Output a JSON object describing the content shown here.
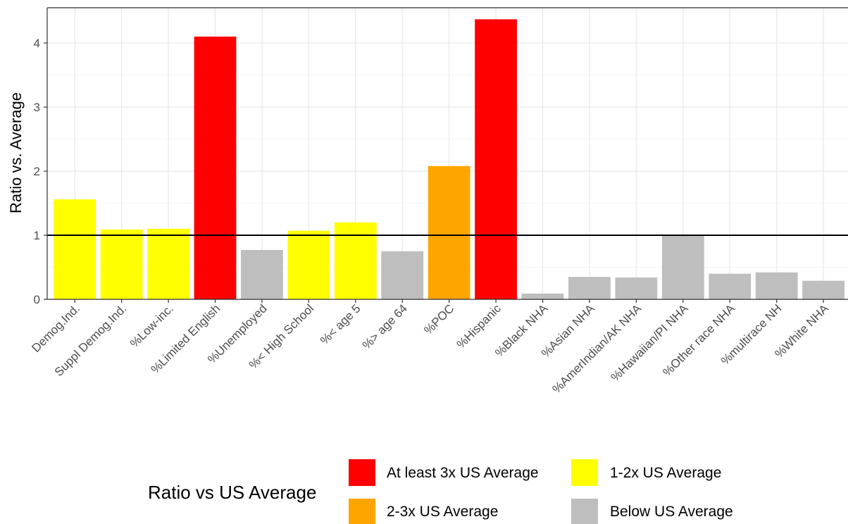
{
  "chart_data": {
    "type": "bar",
    "title": "",
    "xlabel": "",
    "ylabel": "Ratio vs. Average",
    "ylim": [
      0,
      4.55
    ],
    "yticks": [
      0,
      1,
      2,
      3,
      4
    ],
    "reference_line": 1,
    "grid": true,
    "categories": [
      "Demog.Ind.",
      "Suppl Demog.Ind.",
      "%Low-inc.",
      "%Limited English",
      "%Unemployed",
      "%< High School",
      "%< age 5",
      "%> age 64",
      "%POC",
      "%Hispanic",
      "%Black NHA",
      "%Asian NHA",
      "%AmerIndian/AK NHA",
      "%Hawaiian/PI NHA",
      "%Other race NHA",
      "%multirace NH",
      "%White NHA"
    ],
    "values": [
      1.56,
      1.09,
      1.1,
      4.1,
      0.77,
      1.07,
      1.2,
      0.75,
      2.08,
      4.37,
      0.09,
      0.35,
      0.34,
      0.99,
      0.4,
      0.42,
      0.29
    ],
    "groups": [
      "1-2x US Average",
      "1-2x US Average",
      "1-2x US Average",
      "At least 3x US Average",
      "Below US Average",
      "1-2x US Average",
      "1-2x US Average",
      "Below US Average",
      "2-3x US Average",
      "At least 3x US Average",
      "Below US Average",
      "Below US Average",
      "Below US Average",
      "Below US Average",
      "Below US Average",
      "Below US Average",
      "Below US Average"
    ],
    "legend": {
      "title": "Ratio vs US Average",
      "position": "bottom",
      "items": [
        {
          "label": "At least 3x US Average",
          "color": "#ff0000"
        },
        {
          "label": "1-2x US Average",
          "color": "#ffff00"
        },
        {
          "label": "2-3x US Average",
          "color": "#ffa500"
        },
        {
          "label": "Below US Average",
          "color": "#bebebe"
        }
      ]
    }
  }
}
